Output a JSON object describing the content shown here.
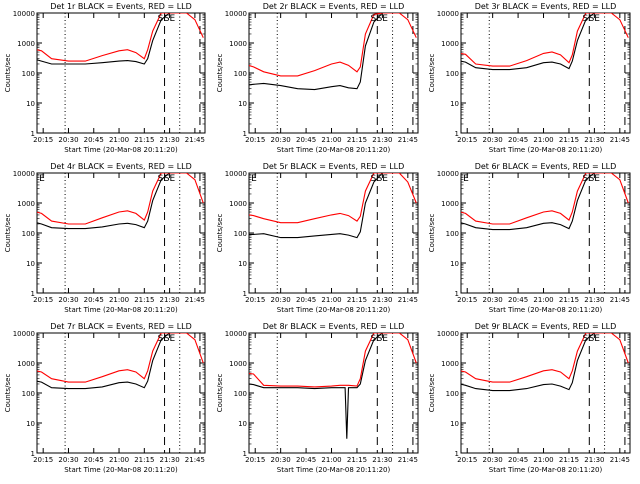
{
  "colors": {
    "events": "#000000",
    "lld": "#ff0000",
    "axis": "#000000"
  },
  "shared": {
    "ylabel": "Counts/sec",
    "xlabel": "Start Time (20-Mar-08 20:11:20)",
    "x_ticks": [
      "20:15",
      "20:30",
      "20:45",
      "21:00",
      "21:15",
      "21:30",
      "21:45"
    ],
    "y_ticks": [
      "1",
      "10",
      "100",
      "1000",
      "10000"
    ],
    "x_range": [
      "20:11:20",
      "21:51:00"
    ],
    "y_range": [
      1,
      10000
    ],
    "y_scale": "log",
    "ss_label": "S",
    "se_label": "SE",
    "e_label": "E"
  },
  "chart_data": [
    {
      "type": "line",
      "title": "Det 1r BLACK = Events, RED = LLD",
      "e_label_shown": false,
      "x": [
        "20:11",
        "20:14",
        "20:20",
        "20:30",
        "20:40",
        "20:50",
        "21:00",
        "21:05",
        "21:10",
        "21:15",
        "21:17",
        "21:20",
        "21:25",
        "21:30",
        "21:35",
        "21:40",
        "21:45",
        "21:50"
      ],
      "series": [
        {
          "name": "Events",
          "values": [
            280,
            250,
            200,
            200,
            200,
            220,
            250,
            260,
            240,
            200,
            300,
            1200,
            6000,
            10000,
            10000,
            10000,
            10000,
            null
          ]
        },
        {
          "name": "LLD",
          "values": [
            600,
            550,
            300,
            250,
            250,
            380,
            550,
            600,
            480,
            300,
            600,
            2500,
            10000,
            10000,
            10000,
            10000,
            6000,
            1500
          ]
        }
      ]
    },
    {
      "type": "line",
      "title": "Det 2r BLACK = Events, RED = LLD",
      "e_label_shown": false,
      "x": [
        "20:11",
        "20:14",
        "20:20",
        "20:30",
        "20:40",
        "20:50",
        "21:00",
        "21:05",
        "21:10",
        "21:15",
        "21:17",
        "21:20",
        "21:25",
        "21:30",
        "21:35",
        "21:40",
        "21:45",
        "21:50"
      ],
      "series": [
        {
          "name": "Events",
          "values": [
            40,
            42,
            45,
            38,
            30,
            28,
            35,
            38,
            32,
            30,
            50,
            800,
            5000,
            10000,
            10000,
            10000,
            10000,
            null
          ]
        },
        {
          "name": "LLD",
          "values": [
            180,
            160,
            110,
            80,
            80,
            120,
            200,
            230,
            180,
            110,
            160,
            2000,
            9000,
            10000,
            10000,
            10000,
            6000,
            1500
          ]
        }
      ]
    },
    {
      "type": "line",
      "title": "Det 3r BLACK = Events, RED = LLD",
      "e_label_shown": false,
      "x": [
        "20:11",
        "20:14",
        "20:20",
        "20:30",
        "20:40",
        "20:50",
        "21:00",
        "21:05",
        "21:10",
        "21:15",
        "21:17",
        "21:20",
        "21:25",
        "21:30",
        "21:35",
        "21:40",
        "21:45",
        "21:50"
      ],
      "series": [
        {
          "name": "Events",
          "values": [
            250,
            230,
            150,
            130,
            130,
            150,
            220,
            230,
            200,
            140,
            250,
            1200,
            6000,
            10000,
            10000,
            10000,
            10000,
            null
          ]
        },
        {
          "name": "LLD",
          "values": [
            450,
            420,
            200,
            170,
            170,
            260,
            450,
            500,
            400,
            220,
            400,
            2500,
            10000,
            10000,
            10000,
            10000,
            6000,
            1500
          ]
        }
      ]
    },
    {
      "type": "line",
      "title": "Det 4r BLACK = Events, RED = LLD",
      "e_label_shown": true,
      "x": [
        "20:11",
        "20:14",
        "20:20",
        "20:30",
        "20:40",
        "20:50",
        "21:00",
        "21:05",
        "21:10",
        "21:15",
        "21:17",
        "21:20",
        "21:25",
        "21:30",
        "21:35",
        "21:40",
        "21:45",
        "21:50"
      ],
      "series": [
        {
          "name": "Events",
          "values": [
            220,
            200,
            150,
            140,
            140,
            160,
            200,
            210,
            190,
            150,
            250,
            1200,
            6000,
            10000,
            10000,
            10000,
            10000,
            null
          ]
        },
        {
          "name": "LLD",
          "values": [
            500,
            450,
            250,
            200,
            200,
            320,
            500,
            550,
            450,
            270,
            500,
            2500,
            10000,
            10000,
            10000,
            10000,
            6000,
            1000
          ]
        }
      ]
    },
    {
      "type": "line",
      "title": "Det 5r BLACK = Events, RED = LLD",
      "e_label_shown": true,
      "x": [
        "20:11",
        "20:14",
        "20:20",
        "20:30",
        "20:40",
        "20:50",
        "21:00",
        "21:05",
        "21:10",
        "21:15",
        "21:17",
        "21:20",
        "21:25",
        "21:30",
        "21:35",
        "21:40",
        "21:45",
        "21:50"
      ],
      "series": [
        {
          "name": "Events",
          "values": [
            90,
            90,
            95,
            70,
            70,
            80,
            90,
            95,
            85,
            70,
            110,
            1000,
            5000,
            10000,
            10000,
            10000,
            10000,
            null
          ]
        },
        {
          "name": "LLD",
          "values": [
            400,
            380,
            300,
            220,
            220,
            300,
            400,
            450,
            380,
            250,
            360,
            2500,
            10000,
            10000,
            10000,
            10000,
            5000,
            1000
          ]
        }
      ]
    },
    {
      "type": "line",
      "title": "Det 6r BLACK = Events, RED = LLD",
      "e_label_shown": true,
      "x": [
        "20:11",
        "20:14",
        "20:20",
        "20:30",
        "20:40",
        "20:50",
        "21:00",
        "21:05",
        "21:10",
        "21:15",
        "21:17",
        "21:20",
        "21:25",
        "21:30",
        "21:35",
        "21:40",
        "21:45",
        "21:50"
      ],
      "series": [
        {
          "name": "Events",
          "values": [
            220,
            200,
            150,
            130,
            130,
            150,
            210,
            220,
            190,
            140,
            250,
            1200,
            6000,
            10000,
            10000,
            10000,
            10000,
            null
          ]
        },
        {
          "name": "LLD",
          "values": [
            500,
            450,
            250,
            200,
            200,
            320,
            500,
            550,
            450,
            270,
            500,
            2500,
            10000,
            10000,
            10000,
            10000,
            6000,
            1000
          ]
        }
      ]
    },
    {
      "type": "line",
      "title": "Det 7r BLACK = Events, RED = LLD",
      "e_label_shown": false,
      "x": [
        "20:11",
        "20:14",
        "20:20",
        "20:30",
        "20:40",
        "20:50",
        "21:00",
        "21:05",
        "21:10",
        "21:15",
        "21:17",
        "21:20",
        "21:25",
        "21:30",
        "21:35",
        "21:40",
        "21:45",
        "21:50"
      ],
      "series": [
        {
          "name": "Events",
          "values": [
            250,
            230,
            150,
            140,
            140,
            160,
            220,
            230,
            200,
            150,
            250,
            1200,
            6000,
            10000,
            10000,
            10000,
            10000,
            null
          ]
        },
        {
          "name": "LLD",
          "values": [
            550,
            500,
            300,
            230,
            230,
            350,
            550,
            600,
            500,
            300,
            550,
            2500,
            10000,
            10000,
            10000,
            10000,
            6000,
            1000
          ]
        }
      ]
    },
    {
      "type": "line",
      "title": "Det 8r BLACK = Events, RED = LLD",
      "e_label_shown": false,
      "x": [
        "20:11",
        "20:14",
        "20:20",
        "20:30",
        "20:40",
        "20:50",
        "21:00",
        "21:05",
        "21:08",
        "21:09",
        "21:10",
        "21:15",
        "21:17",
        "21:20",
        "21:25",
        "21:30",
        "21:35",
        "21:40",
        "21:45",
        "21:50"
      ],
      "series": [
        {
          "name": "Events",
          "values": [
            200,
            190,
            150,
            150,
            150,
            140,
            150,
            150,
            150,
            3,
            150,
            150,
            200,
            1200,
            6000,
            10000,
            10000,
            10000,
            10000,
            null
          ]
        },
        {
          "name": "LLD",
          "values": [
            450,
            430,
            180,
            170,
            170,
            160,
            170,
            180,
            180,
            180,
            180,
            170,
            300,
            2500,
            10000,
            10000,
            10000,
            10000,
            6000,
            1000
          ]
        }
      ]
    },
    {
      "type": "line",
      "title": "Det 9r BLACK = Events, RED = LLD",
      "e_label_shown": false,
      "x": [
        "20:11",
        "20:14",
        "20:20",
        "20:30",
        "20:40",
        "20:50",
        "21:00",
        "21:05",
        "21:10",
        "21:15",
        "21:17",
        "21:20",
        "21:25",
        "21:30",
        "21:35",
        "21:40",
        "21:45",
        "21:50"
      ],
      "series": [
        {
          "name": "Events",
          "values": [
            200,
            180,
            140,
            120,
            120,
            140,
            190,
            200,
            170,
            130,
            220,
            1200,
            6000,
            10000,
            10000,
            10000,
            10000,
            null
          ]
        },
        {
          "name": "LLD",
          "values": [
            550,
            500,
            300,
            230,
            230,
            350,
            550,
            600,
            500,
            300,
            550,
            2500,
            10000,
            10000,
            10000,
            10000,
            6000,
            1000
          ]
        }
      ]
    }
  ]
}
